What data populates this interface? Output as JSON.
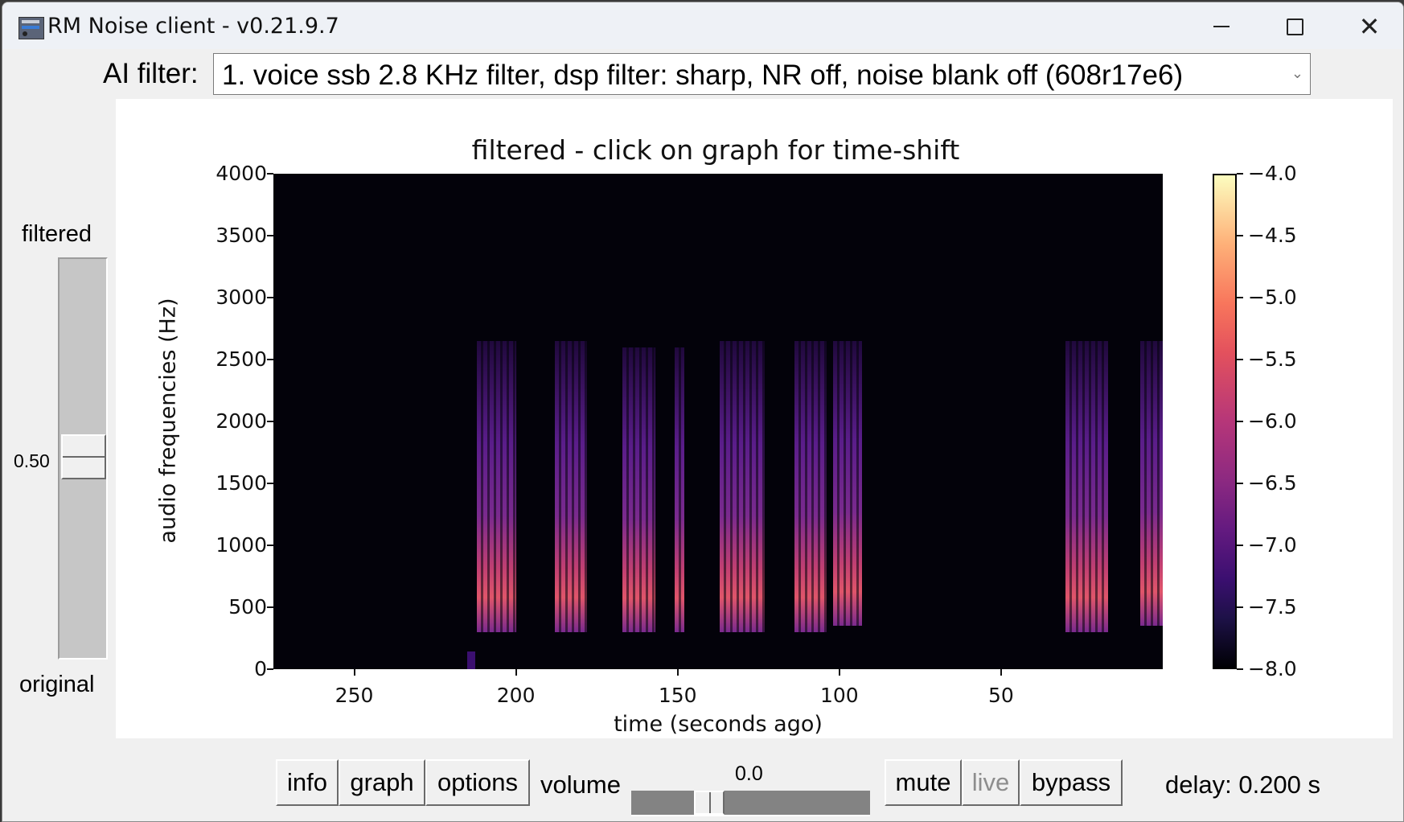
{
  "window": {
    "title": "RM Noise client - v0.21.9.7",
    "controls": {
      "minimize": "minimize-icon",
      "maximize": "maximize-icon",
      "close": "close-icon"
    }
  },
  "filter": {
    "label": "AI filter:",
    "selected": "1. voice ssb 2.8 KHz filter, dsp filter: sharp, NR off, noise blank off (608r17e6)",
    "chevron": "⌄"
  },
  "mix_slider": {
    "top_label": "filtered",
    "bottom_label": "original",
    "value": "0.50"
  },
  "chart_data": {
    "type": "heatmap",
    "title": "filtered - click on graph for time-shift",
    "xlabel": "time (seconds ago)",
    "ylabel": "audio frequencies (Hz)",
    "xlim": [
      275,
      0
    ],
    "ylim": [
      0,
      4000
    ],
    "x_ticks": [
      "250",
      "200",
      "150",
      "100",
      "50"
    ],
    "y_ticks": [
      "4000",
      "3500",
      "3000",
      "2500",
      "2000",
      "1500",
      "1000",
      "500",
      "0"
    ],
    "colorbar": {
      "colormap": "magma",
      "range": [
        -8.0,
        -4.0
      ],
      "ticks": [
        "−4.0",
        "−4.5",
        "−5.0",
        "−5.5",
        "−6.0",
        "−6.5",
        "−7.0",
        "−7.5",
        "−8.0"
      ]
    },
    "grid": false,
    "bursts_seconds_ago": [
      {
        "start": 212,
        "end": 200,
        "freq_max": 2650,
        "freq_min": 300
      },
      {
        "start": 188,
        "end": 178,
        "freq_max": 2650,
        "freq_min": 300
      },
      {
        "start": 167,
        "end": 157,
        "freq_max": 2600,
        "freq_min": 300
      },
      {
        "start": 151,
        "end": 148,
        "freq_max": 2600,
        "freq_min": 300
      },
      {
        "start": 137,
        "end": 123,
        "freq_max": 2650,
        "freq_min": 300
      },
      {
        "start": 114,
        "end": 104,
        "freq_max": 2650,
        "freq_min": 300
      },
      {
        "start": 102,
        "end": 93,
        "freq_max": 2650,
        "freq_min": 350
      },
      {
        "start": 30,
        "end": 17,
        "freq_max": 2650,
        "freq_min": 300
      },
      {
        "start": 7,
        "end": 0,
        "freq_max": 2650,
        "freq_min": 350
      }
    ]
  },
  "toolbar": {
    "info": "info",
    "graph": "graph",
    "options": "options",
    "volume_label": "volume",
    "volume_value": "0.0",
    "mute": "mute",
    "live": "live",
    "bypass": "bypass",
    "delay": "delay: 0.200 s"
  }
}
